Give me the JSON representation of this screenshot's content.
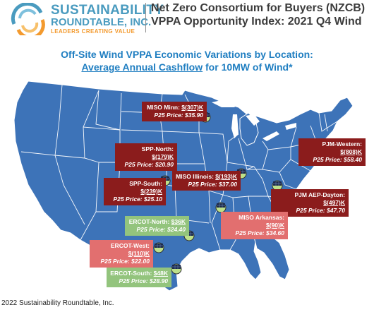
{
  "header": {
    "logo_line1": "SUSTAINABILITY",
    "logo_line2": "ROUNDTABLE, INC.",
    "logo_line3": "LEADERS CREATING VALUE",
    "title_line1": "Net Zero Consortium for Buyers (NZCB)",
    "title_line2": "VPPA Opportunity Index: 2021 Q4 Wind"
  },
  "subtitle": {
    "line1": "Off-Site Wind VPPA Economic Variations by Location:",
    "line2_link": "Average Annual Cashflow",
    "line2_rest": " for 10MW of Wind*"
  },
  "locations": [
    {
      "name": "MISO Minn: ",
      "amount": "$(307)K",
      "price": "P25 Price: $35.90",
      "style": "dark"
    },
    {
      "name": "PJM-Western: ",
      "amount": "$(808)K",
      "price": "P25 Price: $58.40",
      "style": "dark"
    },
    {
      "name": "SPP-North: ",
      "amount": "$(179)K",
      "price": "P25 Price: $20.90",
      "style": "dark"
    },
    {
      "name": "MISO Illinois: ",
      "amount": "$(193)K",
      "price": "P25 Price: $37.00",
      "style": "dark"
    },
    {
      "name": "SPP-South: ",
      "amount": "$(239)K",
      "price": "P25 Price: $25.10",
      "style": "dark"
    },
    {
      "name": "PJM AEP-Dayton: ",
      "amount": "$(497)K",
      "price": "P25 Price: $47.70",
      "style": "dark"
    },
    {
      "name": "MISO Arkansas: ",
      "amount": "$(90)K",
      "price": "P25 Price: $34.60",
      "style": "light"
    },
    {
      "name": "ERCOT-North: ",
      "amount": "$36K",
      "price": "P25 Price: $24.40",
      "style": "green"
    },
    {
      "name": "ERCOT-West: ",
      "amount": "$(110)K",
      "price": "P25 Price: $22.00",
      "style": "light"
    },
    {
      "name": "ERCOT-South: ",
      "amount": "$48K",
      "price": "P25 Price: $28.90",
      "style": "green"
    }
  ],
  "footer": "2022 Sustainability Roundtable, Inc.",
  "colors": {
    "map_fill": "#3d73b8",
    "map_stroke": "#ffffff",
    "negative_dark": "#8b1c1c",
    "negative_light": "#e26f6f",
    "positive": "#93c47d",
    "title_blue": "#1f7ec1",
    "logo_blue": "#4a9bbf",
    "logo_orange": "#f39a2e"
  },
  "icons": {
    "logo": "globe-logo-icon",
    "site": "solar-panel-globe-icon"
  }
}
